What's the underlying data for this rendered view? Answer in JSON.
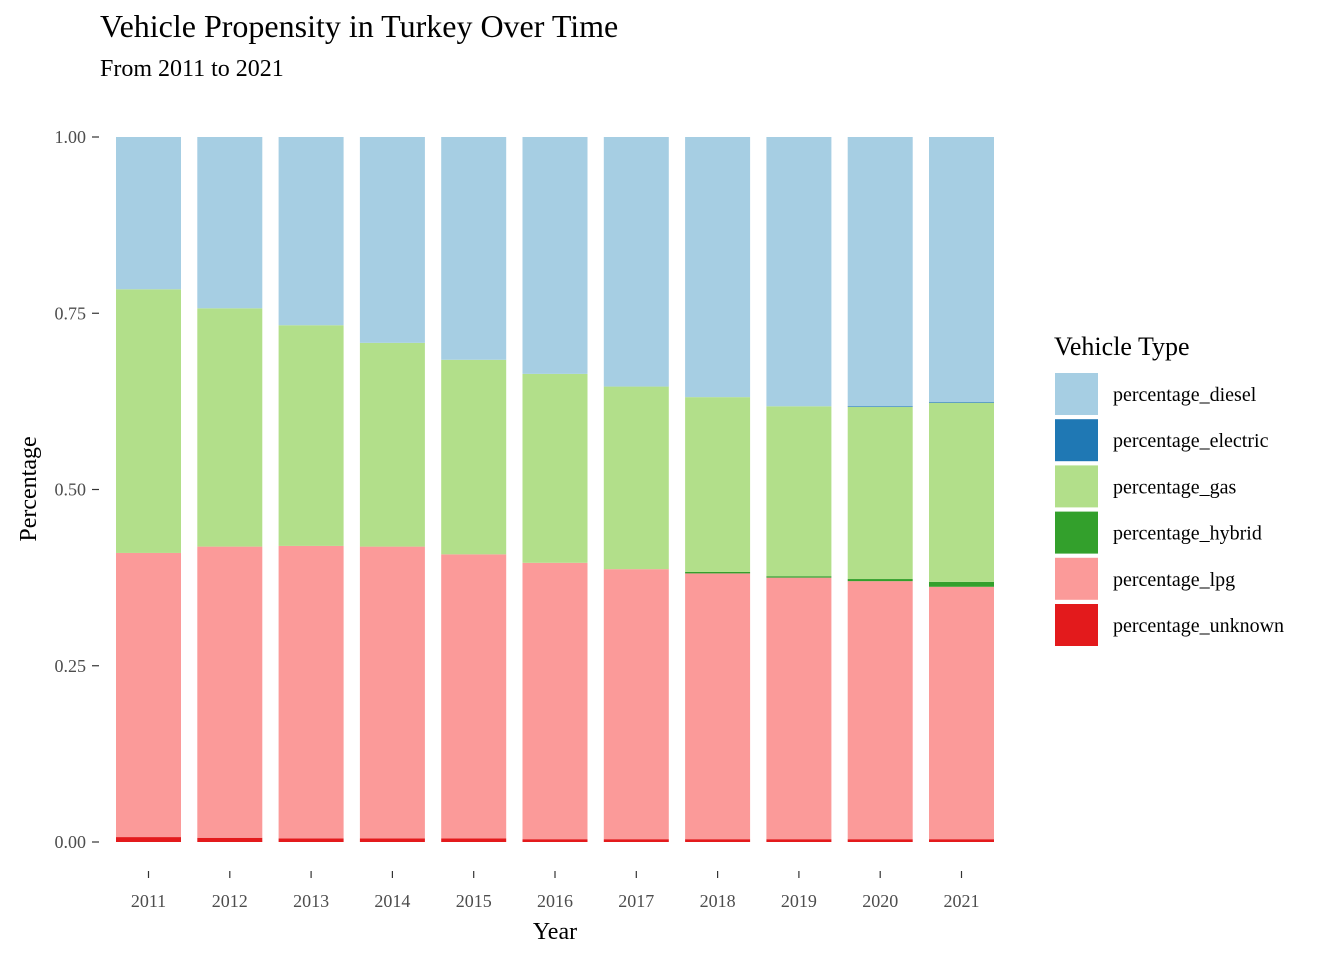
{
  "chart_data": {
    "type": "bar",
    "stacked": true,
    "title": "Vehicle Propensity in Turkey Over Time",
    "subtitle": "From 2011 to 2021",
    "xlabel": "Year",
    "ylabel": "Percentage",
    "ylim": [
      0,
      1
    ],
    "yticks": [
      "0.00",
      "0.25",
      "0.50",
      "0.75",
      "1.00"
    ],
    "grid": false,
    "legend_title": "Vehicle Type",
    "legend_position": "right",
    "categories": [
      "2011",
      "2012",
      "2013",
      "2014",
      "2015",
      "2016",
      "2017",
      "2018",
      "2019",
      "2020",
      "2021"
    ],
    "series": [
      {
        "name": "percentage_unknown",
        "color": "#e31a1c",
        "values": [
          0.007,
          0.006,
          0.005,
          0.005,
          0.005,
          0.004,
          0.004,
          0.004,
          0.004,
          0.004,
          0.004
        ]
      },
      {
        "name": "percentage_lpg",
        "color": "#fb9a99",
        "values": [
          0.403,
          0.413,
          0.415,
          0.414,
          0.403,
          0.392,
          0.383,
          0.377,
          0.371,
          0.366,
          0.358
        ]
      },
      {
        "name": "percentage_hybrid",
        "color": "#33a02c",
        "values": [
          0.0,
          0.0,
          0.0,
          0.0,
          0.0,
          0.0,
          0.0,
          0.002,
          0.002,
          0.003,
          0.007
        ]
      },
      {
        "name": "percentage_gas",
        "color": "#b2df8a",
        "values": [
          0.374,
          0.338,
          0.313,
          0.289,
          0.276,
          0.268,
          0.259,
          0.248,
          0.241,
          0.244,
          0.254
        ]
      },
      {
        "name": "percentage_electric",
        "color": "#1f78b4",
        "values": [
          0.0,
          0.0,
          0.0,
          0.0,
          0.0,
          0.0,
          0.0,
          0.0,
          0.0,
          0.001,
          0.001
        ]
      },
      {
        "name": "percentage_diesel",
        "color": "#a6cee3",
        "values": [
          0.216,
          0.243,
          0.267,
          0.292,
          0.316,
          0.336,
          0.354,
          0.369,
          0.382,
          0.382,
          0.376
        ]
      }
    ],
    "legend_order": [
      "percentage_diesel",
      "percentage_electric",
      "percentage_gas",
      "percentage_hybrid",
      "percentage_lpg",
      "percentage_unknown"
    ]
  }
}
